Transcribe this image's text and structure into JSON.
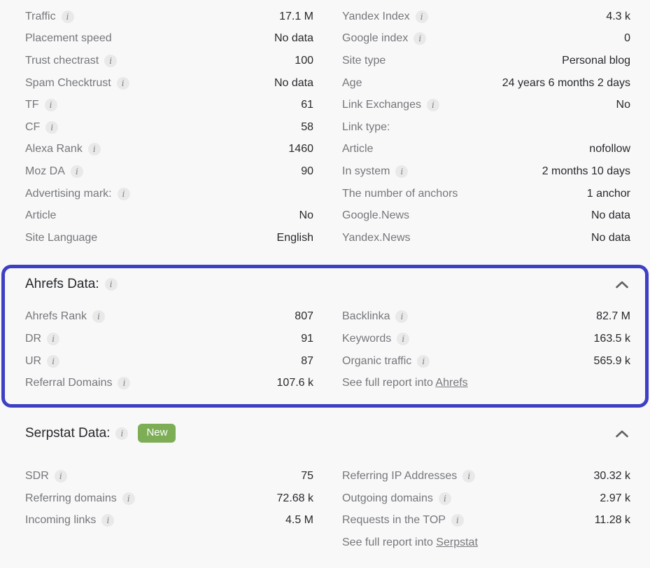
{
  "colors": {
    "background": "#f8f8f9",
    "accent_border": "#3e40c4",
    "badge_green": "#7dae55",
    "label_gray": "#76777a",
    "value_dark": "#28292b"
  },
  "metrics_top": {
    "left": [
      {
        "label": "Traffic",
        "info": true,
        "value": "17.1 M"
      },
      {
        "label": "Placement speed",
        "info": false,
        "value": "No data"
      },
      {
        "label": "Trust chectrast",
        "info": true,
        "value": "100"
      },
      {
        "label": "Spam Checktrust",
        "info": true,
        "value": "No data"
      },
      {
        "label": "TF",
        "info": true,
        "value": "61"
      },
      {
        "label": "CF",
        "info": true,
        "value": "58"
      },
      {
        "label": "Alexa Rank",
        "info": true,
        "value": "1460"
      },
      {
        "label": "Moz DA",
        "info": true,
        "value": "90"
      },
      {
        "label": "Advertising mark:",
        "info": true,
        "value": ""
      },
      {
        "label": "Article",
        "info": false,
        "value": "No"
      },
      {
        "label": "Site Language",
        "info": false,
        "value": "English"
      }
    ],
    "right": [
      {
        "label": "Yandex Index",
        "info": true,
        "value": "4.3 k"
      },
      {
        "label": "Google index",
        "info": true,
        "value": "0"
      },
      {
        "label": "Site type",
        "info": false,
        "value": "Personal blog"
      },
      {
        "label": "Age",
        "info": false,
        "value": "24 years 6 months 2 days"
      },
      {
        "label": "Link Exchanges",
        "info": true,
        "value": "No"
      },
      {
        "label": "Link type:",
        "info": false,
        "value": ""
      },
      {
        "label": "Article",
        "info": false,
        "value": "nofollow"
      },
      {
        "label": "In system",
        "info": true,
        "value": "2 months 10 days"
      },
      {
        "label": "The number of anchors",
        "info": false,
        "value": "1 anchor"
      },
      {
        "label": "Google.News",
        "info": false,
        "value": "No data"
      },
      {
        "label": "Yandex.News",
        "info": false,
        "value": "No data"
      }
    ]
  },
  "ahrefs": {
    "title": "Ahrefs Data:",
    "left": [
      {
        "label": "Ahrefs Rank",
        "info": true,
        "value": "807"
      },
      {
        "label": "DR",
        "info": true,
        "value": "91"
      },
      {
        "label": "UR",
        "info": true,
        "value": "87"
      },
      {
        "label": "Referral Domains",
        "info": true,
        "value": "107.6 k"
      }
    ],
    "right": [
      {
        "label": "Backlinka",
        "info": true,
        "value": "82.7 M"
      },
      {
        "label": "Keywords",
        "info": true,
        "value": "163.5 k"
      },
      {
        "label": "Organic traffic",
        "info": true,
        "value": "565.9 k"
      }
    ],
    "report_prefix": "See full report into ",
    "report_link": "Ahrefs"
  },
  "serpstat": {
    "title": "Serpstat Data:",
    "badge": "New",
    "left": [
      {
        "label": "SDR",
        "info": true,
        "value": "75"
      },
      {
        "label": "Referring domains",
        "info": true,
        "value": "72.68 k"
      },
      {
        "label": "Incoming links",
        "info": true,
        "value": "4.5 M"
      }
    ],
    "right": [
      {
        "label": "Referring IP Addresses",
        "info": true,
        "value": "30.32 k"
      },
      {
        "label": "Outgoing domains",
        "info": true,
        "value": "2.97 k"
      },
      {
        "label": "Requests in the TOP",
        "info": true,
        "value": "11.28 k"
      }
    ],
    "report_prefix": "See full report into ",
    "report_link": "Serpstat"
  }
}
